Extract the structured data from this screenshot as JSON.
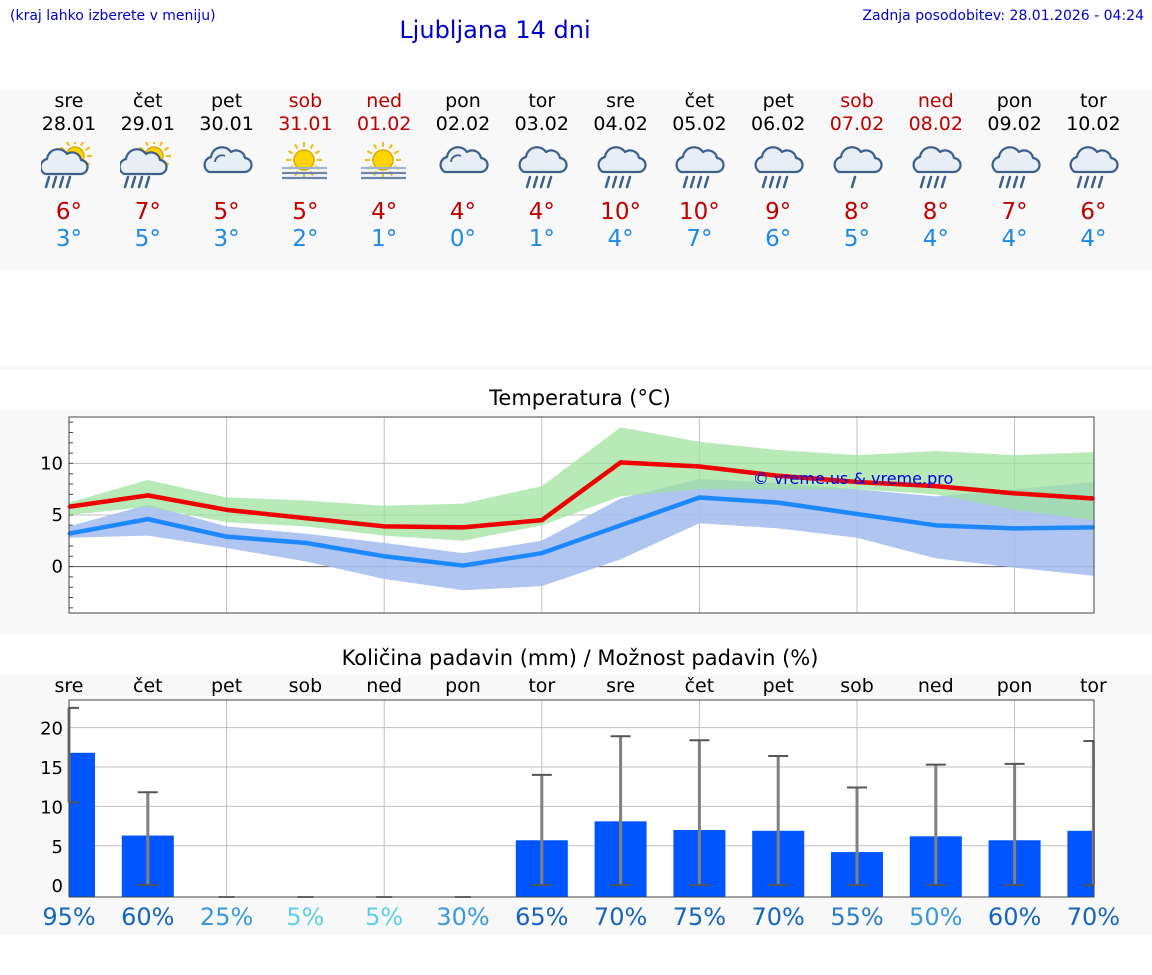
{
  "header": {
    "hint": "(kraj lahko izberete v meniju)",
    "title": "Ljubljana 14 dni",
    "updated": "Zadnja posodobitev: 28.01.2026 - 04:24"
  },
  "colors": {
    "max_line": "#ee0000",
    "min_line": "#1e88ff",
    "max_band": "#9fe39f",
    "min_band": "#a9bff0",
    "bar": "#0055ff",
    "whisker": "#808080",
    "grid": "#c0c0c0"
  },
  "days": [
    {
      "name": "sre",
      "date": "28.01",
      "weekend": false,
      "icon": "sun-cloud-rain-icon",
      "max": "6°",
      "min": "3°"
    },
    {
      "name": "čet",
      "date": "29.01",
      "weekend": false,
      "icon": "sun-cloud-rain-icon",
      "max": "7°",
      "min": "5°"
    },
    {
      "name": "pet",
      "date": "30.01",
      "weekend": false,
      "icon": "cloud-icon",
      "max": "5°",
      "min": "3°"
    },
    {
      "name": "sob",
      "date": "31.01",
      "weekend": true,
      "icon": "sun-fog-icon",
      "max": "5°",
      "min": "2°"
    },
    {
      "name": "ned",
      "date": "01.02",
      "weekend": true,
      "icon": "sun-fog-icon",
      "max": "4°",
      "min": "1°"
    },
    {
      "name": "pon",
      "date": "02.02",
      "weekend": false,
      "icon": "cloud-icon",
      "max": "4°",
      "min": "0°"
    },
    {
      "name": "tor",
      "date": "03.02",
      "weekend": false,
      "icon": "cloud-rain-icon",
      "max": "4°",
      "min": "1°"
    },
    {
      "name": "sre",
      "date": "04.02",
      "weekend": false,
      "icon": "cloud-rain-icon",
      "max": "10°",
      "min": "4°"
    },
    {
      "name": "čet",
      "date": "05.02",
      "weekend": false,
      "icon": "cloud-rain-icon",
      "max": "10°",
      "min": "7°"
    },
    {
      "name": "pet",
      "date": "06.02",
      "weekend": false,
      "icon": "cloud-rain-icon",
      "max": "9°",
      "min": "6°"
    },
    {
      "name": "sob",
      "date": "07.02",
      "weekend": true,
      "icon": "cloud-rain-light-icon",
      "max": "8°",
      "min": "5°"
    },
    {
      "name": "ned",
      "date": "08.02",
      "weekend": true,
      "icon": "cloud-rain-icon",
      "max": "8°",
      "min": "4°"
    },
    {
      "name": "pon",
      "date": "09.02",
      "weekend": false,
      "icon": "cloud-rain-icon",
      "max": "7°",
      "min": "4°"
    },
    {
      "name": "tor",
      "date": "10.02",
      "weekend": false,
      "icon": "cloud-rain-icon",
      "max": "6°",
      "min": "4°"
    }
  ],
  "chart_data": [
    {
      "type": "line",
      "title": "Temperatura (°C)",
      "watermark": "© vreme.us & vreme.pro",
      "x": [
        0,
        1,
        2,
        3,
        4,
        5,
        6,
        7,
        8,
        9,
        10,
        11,
        12,
        13
      ],
      "ylim": [
        -4.5,
        14.5
      ],
      "yticks": [
        0,
        5,
        10
      ],
      "ytick_labels": [
        "0",
        "5",
        "10"
      ],
      "series": [
        {
          "name": "max",
          "values": [
            5.8,
            6.9,
            5.5,
            4.7,
            3.9,
            3.8,
            4.5,
            10.1,
            9.7,
            8.8,
            8.2,
            7.8,
            7.1,
            6.6
          ]
        },
        {
          "name": "min",
          "values": [
            3.2,
            4.6,
            2.9,
            2.3,
            1.0,
            0.1,
            1.3,
            4.0,
            6.7,
            6.2,
            5.1,
            4.0,
            3.7,
            3.8
          ]
        }
      ],
      "bands": [
        {
          "name": "max_range",
          "low": [
            5.0,
            5.8,
            4.3,
            3.9,
            3.0,
            2.5,
            4.0,
            6.8,
            7.5,
            7.5,
            7.5,
            7.0,
            5.5,
            4.5
          ],
          "high": [
            6.2,
            8.4,
            6.7,
            6.4,
            5.9,
            6.1,
            7.8,
            13.5,
            12.1,
            11.3,
            10.8,
            11.2,
            10.8,
            11.1
          ]
        },
        {
          "name": "min_range",
          "low": [
            2.8,
            3.0,
            1.8,
            0.5,
            -1.2,
            -2.3,
            -1.9,
            0.7,
            4.2,
            3.7,
            2.8,
            0.8,
            -0.1,
            -0.9
          ],
          "high": [
            3.9,
            6.0,
            3.9,
            3.2,
            2.3,
            1.3,
            2.5,
            6.6,
            8.5,
            8.1,
            7.5,
            6.8,
            7.5,
            8.2
          ]
        }
      ]
    },
    {
      "type": "bar",
      "title": "Količina padavin (mm) / Možnost padavin (%)",
      "categories": [
        "sre",
        "čet",
        "pet",
        "sob",
        "ned",
        "pon",
        "tor",
        "sre",
        "čet",
        "pet",
        "sob",
        "ned",
        "pon",
        "tor"
      ],
      "ylim": [
        -1.5,
        23.5
      ],
      "yticks": [
        0,
        5,
        10,
        15,
        20
      ],
      "ytick_labels": [
        "0",
        "5",
        "10",
        "15",
        "20"
      ],
      "values": [
        16.8,
        6.3,
        0,
        0,
        0,
        0,
        5.7,
        8.1,
        7.0,
        6.9,
        4.2,
        6.2,
        5.7,
        6.9
      ],
      "whisker_low": [
        10.5,
        0,
        0,
        0,
        0,
        0,
        0,
        0,
        0,
        0,
        0,
        0,
        0,
        0
      ],
      "whisker_high": [
        22.5,
        11.8,
        0,
        0,
        0,
        0,
        14.0,
        18.9,
        18.4,
        16.4,
        12.4,
        15.3,
        15.4,
        18.3
      ],
      "probability": [
        "95%",
        "60%",
        "25%",
        "5%",
        "5%",
        "30%",
        "65%",
        "70%",
        "75%",
        "70%",
        "55%",
        "50%",
        "60%",
        "70%"
      ],
      "probability_colors": [
        "#1565c0",
        "#1565c0",
        "#3a9ad9",
        "#5cd0e6",
        "#5cd0e6",
        "#3a9ad9",
        "#1565c0",
        "#1565c0",
        "#1565c0",
        "#1565c0",
        "#2b7cc9",
        "#3a9ad9",
        "#1565c0",
        "#1565c0"
      ]
    }
  ]
}
